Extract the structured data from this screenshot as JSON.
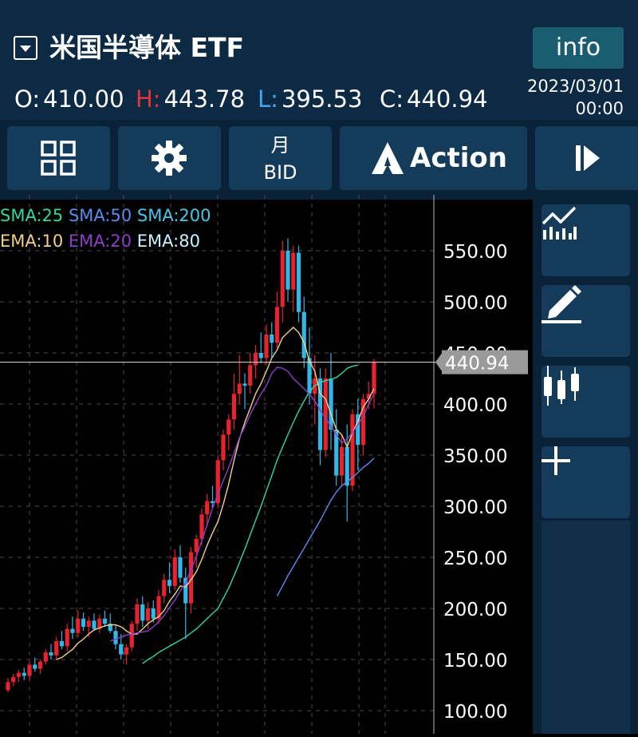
{
  "header": {
    "symbol": "米国半導体 ETF",
    "info_label": "info",
    "ohlc": [
      {
        "key": "O:",
        "value": "410.00",
        "color": "#ffffff"
      },
      {
        "key": "H:",
        "value": "443.78",
        "color": "#e8333b"
      },
      {
        "key": "L:",
        "value": "395.53",
        "color": "#3fa8f0"
      },
      {
        "key": "C:",
        "value": "440.94",
        "color": "#ffffff"
      }
    ],
    "date": "2023/03/01",
    "time": "00:00"
  },
  "toolbar": {
    "layout_icon": "grid-icon",
    "settings_icon": "gear-icon",
    "period_label": "月",
    "price_type_label": "BID",
    "action_label": "Action",
    "action_icon": "action-logo-icon",
    "play_icon": "step-forward-icon"
  },
  "sidebar": {
    "items": [
      {
        "icon": "indicator-chart-icon"
      },
      {
        "icon": "pencil-draw-icon"
      },
      {
        "icon": "candlestick-icon"
      },
      {
        "icon": "plus-icon"
      }
    ]
  },
  "legend": {
    "sma": [
      {
        "label": "SMA:25",
        "color": "#2ed8a0"
      },
      {
        "label": "SMA:50",
        "color": "#5b8cf0"
      },
      {
        "label": "SMA:200",
        "color": "#45c8e8"
      }
    ],
    "ema": [
      {
        "label": "EMA:10",
        "color": "#f2d08a"
      },
      {
        "label": "EMA:20",
        "color": "#8c3ec8"
      },
      {
        "label": "EMA:80",
        "color": "#c8f4ff"
      }
    ]
  },
  "chart_data": {
    "type": "candlestick",
    "y_ticks": [
      "100.00",
      "150.00",
      "200.00",
      "250.00",
      "300.00",
      "350.00",
      "400.00",
      "450.00",
      "500.00",
      "550.00"
    ],
    "ylim": [
      90,
      590
    ],
    "current_price": "440.94",
    "up_color": "#e8222e",
    "down_color": "#2fb8e8",
    "grid": true,
    "candles": [
      [
        120,
        132,
        118,
        128
      ],
      [
        128,
        136,
        124,
        133
      ],
      [
        133,
        140,
        128,
        137
      ],
      [
        137,
        142,
        130,
        134
      ],
      [
        134,
        148,
        130,
        145
      ],
      [
        145,
        152,
        138,
        141
      ],
      [
        141,
        150,
        136,
        148
      ],
      [
        148,
        160,
        145,
        157
      ],
      [
        157,
        165,
        150,
        154
      ],
      [
        154,
        172,
        150,
        168
      ],
      [
        168,
        178,
        160,
        163
      ],
      [
        163,
        185,
        158,
        180
      ],
      [
        180,
        192,
        170,
        176
      ],
      [
        176,
        198,
        172,
        190
      ],
      [
        190,
        196,
        178,
        182
      ],
      [
        182,
        192,
        172,
        188
      ],
      [
        188,
        195,
        178,
        180
      ],
      [
        180,
        194,
        176,
        190
      ],
      [
        190,
        198,
        182,
        185
      ],
      [
        185,
        195,
        176,
        178
      ],
      [
        178,
        184,
        160,
        165
      ],
      [
        165,
        175,
        150,
        155
      ],
      [
        155,
        165,
        145,
        162
      ],
      [
        162,
        188,
        158,
        185
      ],
      [
        185,
        210,
        178,
        204
      ],
      [
        204,
        212,
        182,
        188
      ],
      [
        188,
        206,
        180,
        200
      ],
      [
        200,
        208,
        186,
        190
      ],
      [
        190,
        218,
        185,
        212
      ],
      [
        212,
        234,
        205,
        228
      ],
      [
        228,
        245,
        215,
        222
      ],
      [
        222,
        258,
        218,
        250
      ],
      [
        250,
        262,
        225,
        230
      ],
      [
        230,
        240,
        170,
        205
      ],
      [
        205,
        260,
        195,
        255
      ],
      [
        255,
        272,
        240,
        268
      ],
      [
        268,
        298,
        262,
        292
      ],
      [
        292,
        312,
        280,
        305
      ],
      [
        305,
        320,
        298,
        303
      ],
      [
        303,
        350,
        298,
        345
      ],
      [
        345,
        375,
        335,
        370
      ],
      [
        370,
        390,
        355,
        385
      ],
      [
        385,
        430,
        375,
        410
      ],
      [
        410,
        448,
        400,
        420
      ],
      [
        420,
        430,
        395,
        418
      ],
      [
        418,
        450,
        410,
        438
      ],
      [
        438,
        458,
        425,
        450
      ],
      [
        450,
        470,
        440,
        445
      ],
      [
        445,
        478,
        438,
        468
      ],
      [
        468,
        480,
        445,
        460
      ],
      [
        460,
        510,
        455,
        495
      ],
      [
        495,
        560,
        480,
        550
      ],
      [
        550,
        562,
        500,
        512
      ],
      [
        512,
        555,
        490,
        548
      ],
      [
        548,
        555,
        480,
        490
      ],
      [
        490,
        505,
        435,
        445
      ],
      [
        445,
        475,
        400,
        410
      ],
      [
        410,
        448,
        380,
        425
      ],
      [
        425,
        435,
        340,
        355
      ],
      [
        355,
        435,
        348,
        425
      ],
      [
        425,
        450,
        355,
        375
      ],
      [
        375,
        395,
        320,
        330
      ],
      [
        330,
        370,
        320,
        358
      ],
      [
        358,
        380,
        285,
        320
      ],
      [
        320,
        395,
        315,
        390
      ],
      [
        390,
        405,
        335,
        360
      ],
      [
        360,
        410,
        350,
        405
      ],
      [
        405,
        422,
        395,
        410
      ],
      [
        410,
        444,
        396,
        441
      ]
    ],
    "series": [
      {
        "name": "SMA:25",
        "color": "#2ed8a0",
        "start": 25,
        "values": [
          146,
          150,
          153,
          157,
          160,
          163,
          166,
          169,
          172,
          176,
          180,
          185,
          190,
          195,
          200,
          210,
          220,
          232,
          245,
          258,
          272,
          286,
          300,
          315,
          330,
          345,
          358,
          370,
          382,
          393,
          403,
          412,
          418,
          421,
          423,
          424,
          426,
          430,
          435,
          437,
          438
        ]
      },
      {
        "name": "SMA:50",
        "color": "#5b8cf0",
        "start": 50,
        "values": [
          212,
          222,
          232,
          241,
          250,
          259,
          268,
          277,
          286,
          296,
          306,
          314,
          320,
          324,
          328,
          333,
          338,
          342,
          347
        ]
      },
      {
        "name": "EMA:10",
        "color": "#f2d08a",
        "start": 9,
        "values": [
          150,
          152,
          156,
          160,
          166,
          170,
          175,
          179,
          181,
          183,
          184,
          184,
          182,
          178,
          175,
          175,
          180,
          185,
          189,
          192,
          198,
          207,
          214,
          222,
          221,
          228,
          236,
          248,
          262,
          274,
          285,
          302,
          322,
          345,
          366,
          382,
          396,
          410,
          420,
          432,
          445,
          453,
          465,
          470,
          475,
          470,
          460,
          442,
          432,
          410,
          405,
          390,
          375,
          370,
          358,
          372,
          383,
          397,
          405,
          415
        ]
      },
      {
        "name": "EMA:20",
        "color": "#8c3ec8",
        "start": 19,
        "values": [
          168,
          170,
          172,
          174,
          175,
          176,
          177,
          178,
          182,
          187,
          193,
          201,
          208,
          217,
          225,
          238,
          251,
          266,
          282,
          298,
          312,
          325,
          338,
          352,
          367,
          378,
          390,
          400,
          410,
          418,
          430,
          436,
          435,
          432,
          425,
          420,
          415,
          410,
          403,
          394,
          386,
          378,
          370,
          362,
          366,
          372,
          380,
          388,
          400,
          410
        ]
      }
    ]
  }
}
